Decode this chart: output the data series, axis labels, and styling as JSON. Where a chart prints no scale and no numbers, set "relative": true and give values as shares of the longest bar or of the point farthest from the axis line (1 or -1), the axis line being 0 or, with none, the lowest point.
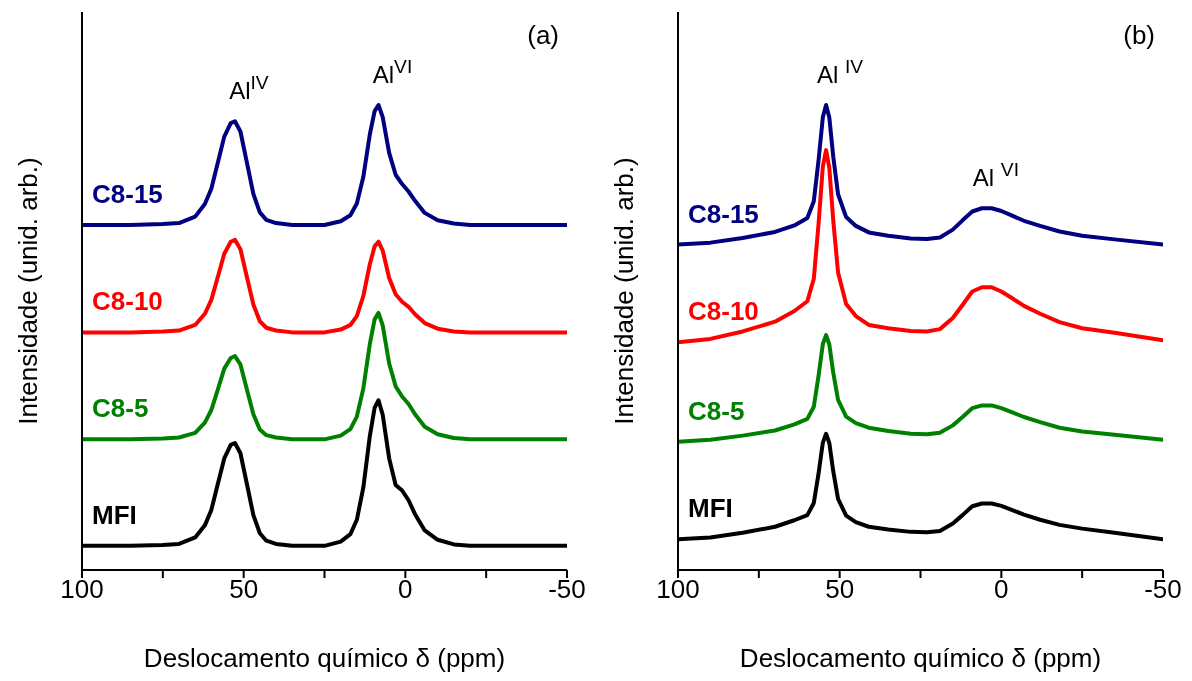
{
  "chart_data": [
    {
      "type": "line",
      "title": "(a)",
      "xlabel": "Deslocamento químico δ (ppm)",
      "ylabel": "Intensidade (unid. arb.)",
      "relative": true,
      "xlim": [
        100,
        -50
      ],
      "xticks": [
        100,
        {
          "value": 75,
          "label": null
        },
        50,
        {
          "value": 25,
          "label": null
        },
        0,
        {
          "value": -25,
          "label": null
        },
        -50
      ],
      "annotations": [
        "Al$^{IV}$",
        "Al$^{VI}$"
      ],
      "x": [
        100,
        85,
        75,
        70,
        65,
        62,
        60,
        58,
        56,
        54,
        52.7,
        51,
        49,
        47,
        45,
        43,
        40,
        35,
        30,
        25,
        20,
        17,
        15,
        13,
        11,
        9.5,
        8.3,
        7,
        5,
        3,
        1,
        -1,
        -3,
        -6,
        -10,
        -15,
        -20,
        -30,
        -40,
        -50
      ],
      "series": [
        {
          "name": "C8-15",
          "color": "#000080",
          "values": [
            0.742,
            0.742,
            0.744,
            0.746,
            0.76,
            0.787,
            0.82,
            0.876,
            0.932,
            0.961,
            0.965,
            0.943,
            0.876,
            0.809,
            0.769,
            0.753,
            0.746,
            0.742,
            0.742,
            0.742,
            0.75,
            0.763,
            0.788,
            0.845,
            0.936,
            0.987,
            1.0,
            0.974,
            0.897,
            0.85,
            0.83,
            0.814,
            0.794,
            0.768,
            0.752,
            0.745,
            0.742,
            0.742,
            0.742,
            0.742
          ]
        },
        {
          "name": "C8-10",
          "color": "#ff0000",
          "values": [
            0.511,
            0.511,
            0.513,
            0.515,
            0.527,
            0.551,
            0.581,
            0.63,
            0.68,
            0.706,
            0.71,
            0.69,
            0.63,
            0.571,
            0.535,
            0.521,
            0.515,
            0.511,
            0.511,
            0.511,
            0.517,
            0.527,
            0.546,
            0.589,
            0.657,
            0.696,
            0.706,
            0.687,
            0.628,
            0.593,
            0.577,
            0.566,
            0.55,
            0.531,
            0.519,
            0.513,
            0.511,
            0.511,
            0.511,
            0.511
          ]
        },
        {
          "name": "C8-5",
          "color": "#008000",
          "values": [
            0.281,
            0.281,
            0.283,
            0.285,
            0.295,
            0.317,
            0.344,
            0.388,
            0.433,
            0.456,
            0.46,
            0.442,
            0.388,
            0.335,
            0.302,
            0.29,
            0.285,
            0.281,
            0.281,
            0.281,
            0.289,
            0.303,
            0.33,
            0.39,
            0.485,
            0.539,
            0.553,
            0.526,
            0.444,
            0.395,
            0.373,
            0.357,
            0.335,
            0.308,
            0.292,
            0.284,
            0.281,
            0.281,
            0.281,
            0.281
          ]
        },
        {
          "name": "MFI",
          "color": "#000000",
          "values": [
            0.052,
            0.052,
            0.054,
            0.056,
            0.07,
            0.096,
            0.129,
            0.185,
            0.24,
            0.269,
            0.273,
            0.251,
            0.185,
            0.118,
            0.079,
            0.063,
            0.056,
            0.052,
            0.052,
            0.052,
            0.061,
            0.077,
            0.108,
            0.177,
            0.287,
            0.349,
            0.365,
            0.334,
            0.24,
            0.183,
            0.171,
            0.15,
            0.12,
            0.085,
            0.065,
            0.055,
            0.052,
            0.052,
            0.052,
            0.052
          ]
        }
      ]
    },
    {
      "type": "line",
      "title": "(b)",
      "xlabel": "Deslocamento químico δ (ppm)",
      "ylabel": "Intensidade (unid. arb.)",
      "relative": true,
      "xlim": [
        100,
        -50
      ],
      "xticks": [
        100,
        {
          "value": 75,
          "label": null
        },
        50,
        {
          "value": 25,
          "label": null
        },
        0,
        {
          "value": -25,
          "label": null
        },
        -50
      ],
      "annotations": [
        "Al $^{IV}$",
        "Al $^{VI}$"
      ],
      "x": [
        100,
        90,
        80,
        70,
        64,
        60,
        58,
        56.5,
        55.2,
        54.2,
        53.2,
        52,
        50.5,
        48,
        45,
        41,
        35,
        28,
        23,
        19,
        15,
        12,
        9,
        6,
        3,
        0,
        -3,
        -7,
        -12,
        -18,
        -25,
        -35,
        -50
      ],
      "series": [
        {
          "name": "C8-15",
          "color": "#000080",
          "values": [
            0.7,
            0.704,
            0.714,
            0.727,
            0.741,
            0.757,
            0.793,
            0.883,
            0.974,
            1.0,
            0.973,
            0.89,
            0.808,
            0.759,
            0.74,
            0.726,
            0.719,
            0.713,
            0.712,
            0.715,
            0.732,
            0.752,
            0.771,
            0.778,
            0.778,
            0.772,
            0.763,
            0.751,
            0.74,
            0.728,
            0.719,
            0.711,
            0.7
          ]
        },
        {
          "name": "C8-10",
          "color": "#ff0000",
          "values": [
            0.49,
            0.497,
            0.513,
            0.534,
            0.557,
            0.578,
            0.626,
            0.747,
            0.868,
            0.903,
            0.865,
            0.753,
            0.64,
            0.572,
            0.546,
            0.527,
            0.52,
            0.514,
            0.513,
            0.518,
            0.542,
            0.57,
            0.599,
            0.608,
            0.608,
            0.599,
            0.586,
            0.568,
            0.551,
            0.533,
            0.52,
            0.51,
            0.494
          ]
        },
        {
          "name": "C8-5",
          "color": "#008000",
          "values": [
            0.276,
            0.28,
            0.289,
            0.3,
            0.313,
            0.325,
            0.351,
            0.419,
            0.486,
            0.505,
            0.485,
            0.425,
            0.366,
            0.33,
            0.316,
            0.306,
            0.299,
            0.293,
            0.292,
            0.295,
            0.311,
            0.329,
            0.348,
            0.354,
            0.354,
            0.348,
            0.34,
            0.329,
            0.318,
            0.306,
            0.298,
            0.291,
            0.28
          ]
        },
        {
          "name": "MFI",
          "color": "#000000",
          "values": [
            0.066,
            0.07,
            0.08,
            0.093,
            0.107,
            0.118,
            0.144,
            0.209,
            0.274,
            0.293,
            0.273,
            0.213,
            0.153,
            0.117,
            0.103,
            0.093,
            0.087,
            0.082,
            0.081,
            0.084,
            0.1,
            0.118,
            0.137,
            0.143,
            0.143,
            0.138,
            0.13,
            0.119,
            0.108,
            0.097,
            0.089,
            0.08,
            0.066
          ]
        }
      ]
    }
  ]
}
